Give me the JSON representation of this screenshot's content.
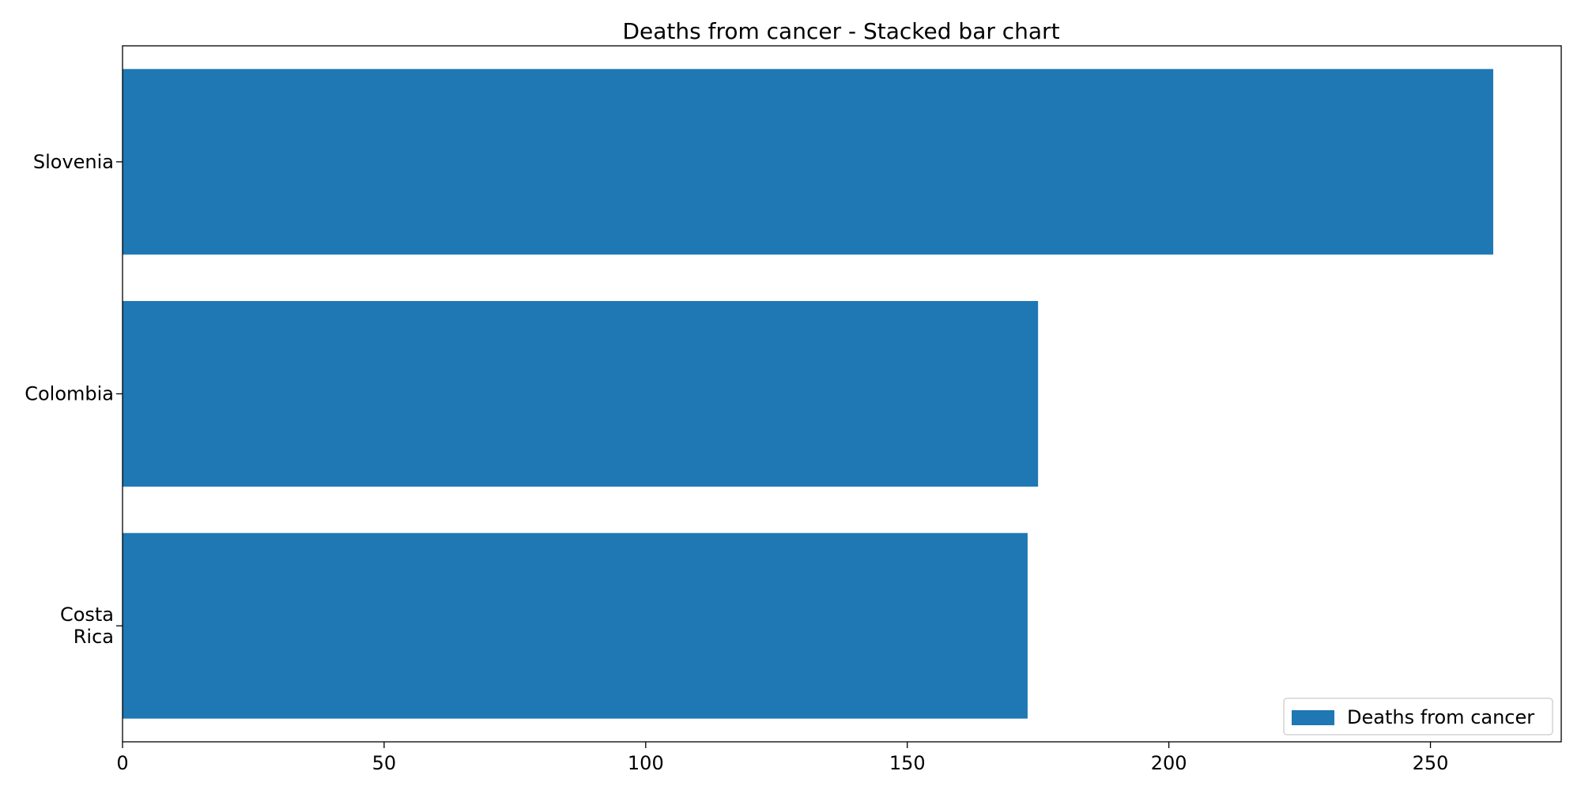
{
  "chart_data": {
    "type": "bar",
    "orientation": "horizontal",
    "title": "Deaths from cancer - Stacked bar chart",
    "xlabel": "",
    "ylabel": "",
    "categories": [
      "Slovenia",
      "Colombia",
      "Costa\nRica"
    ],
    "series": [
      {
        "name": "Deaths from cancer",
        "color": "#1f77b4",
        "values": [
          262,
          175,
          173
        ]
      }
    ],
    "xlim": [
      0,
      275
    ],
    "x_ticks": [
      0,
      50,
      100,
      150,
      200,
      250
    ],
    "grid": false,
    "legend_position": "lower-right"
  }
}
